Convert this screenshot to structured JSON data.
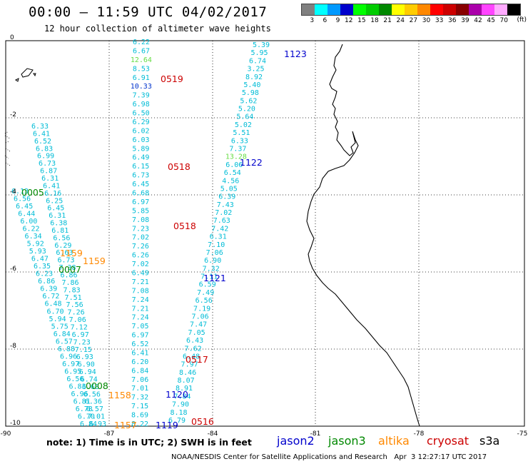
{
  "header": {
    "title": "00:00 — 11:59 UTC 04/02/2017",
    "subtitle": "12 hour collection of altimeter wave heights"
  },
  "legend": {
    "unit": "(ft)",
    "bins": [
      {
        "label": "3",
        "color": "#808080"
      },
      {
        "label": "6",
        "color": "#00ffff"
      },
      {
        "label": "9",
        "color": "#0099ff"
      },
      {
        "label": "12",
        "color": "#0000cc"
      },
      {
        "label": "15",
        "color": "#00ff00"
      },
      {
        "label": "18",
        "color": "#00cc00"
      },
      {
        "label": "21",
        "color": "#008800"
      },
      {
        "label": "24",
        "color": "#ffff00"
      },
      {
        "label": "27",
        "color": "#ffcc00"
      },
      {
        "label": "30",
        "color": "#ff8800"
      },
      {
        "label": "33",
        "color": "#ff0000"
      },
      {
        "label": "36",
        "color": "#cc0000"
      },
      {
        "label": "39",
        "color": "#880000"
      },
      {
        "label": "42",
        "color": "#aa00aa"
      },
      {
        "label": "45",
        "color": "#ff44ff"
      },
      {
        "label": "70",
        "color": "#ffaaff"
      },
      {
        "label": "",
        "color": "#000000"
      }
    ]
  },
  "axes": {
    "y_ticks": [
      "0",
      "-2",
      "-4",
      "-6",
      "-8",
      "-10"
    ],
    "x_ticks": [
      "-90",
      "-87",
      "-84",
      "-81",
      "-78",
      "-75"
    ]
  },
  "colors": {
    "track_value": "#00bcd6",
    "value_high": "#66dd44",
    "value_dark": "#0033cc",
    "jason2": "#0000cc",
    "jason3": "#008800",
    "altika": "#ff8800",
    "cryosat": "#cc0000",
    "s3a": "#000000",
    "gridline": "#000000",
    "coast": "#000000"
  },
  "tracks": [
    {
      "name": "track-east-1",
      "values": [
        "5.39",
        "5.95",
        "6.74",
        "3.25",
        "8.92",
        "5.40",
        "5.98",
        "5.62",
        "5.20",
        "5.64",
        "5.02",
        "5.51",
        "6.33",
        "7.37",
        "13.28",
        "6.06",
        "6.54",
        "4.56",
        "5.05",
        "6.39",
        "7.43",
        "7.02",
        "7.63",
        "7.42",
        "6.31",
        "7.10",
        "7.06",
        "6.90",
        "7.32",
        "7.11",
        "6.59",
        "7.49",
        "6.56",
        "7.19",
        "7.06",
        "7.47",
        "7.05",
        "6.43",
        "7.62",
        "6.48",
        "7.97",
        "8.46",
        "8.07",
        "8.91",
        "7.84",
        "7.90",
        "8.18",
        "6.79"
      ]
    },
    {
      "name": "track-center",
      "values": [
        "6.22",
        "6.67",
        "12.64",
        "8.53",
        "6.91",
        "10.33",
        "7.39",
        "6.98",
        "6.50",
        "6.29",
        "6.02",
        "6.03",
        "5.89",
        "6.49",
        "6.15",
        "6.73",
        "6.45",
        "6.68",
        "6.97",
        "5.85",
        "7.08",
        "7.23",
        "7.02",
        "7.26",
        "6.26",
        "7.02",
        "6.49",
        "7.21",
        "7.08",
        "7.24",
        "7.21",
        "7.24",
        "7.05",
        "6.97",
        "6.52",
        "6.41",
        "6.20",
        "6.84",
        "7.06",
        "7.01",
        "7.32",
        "7.15",
        "8.69",
        "8.22"
      ]
    },
    {
      "name": "track-west-a",
      "values": [
        "6.33",
        "6.41",
        "6.52",
        "6.83",
        "6.99",
        "6.73",
        "6.87",
        "6.31",
        "6.41",
        "6.16",
        "6.25",
        "6.45",
        "6.31",
        "6.38",
        "6.81",
        "6.56",
        "6.29",
        "6.63",
        "6.73",
        "7.38",
        "6.86",
        "7.86",
        "7.83",
        "7.51",
        "7.56",
        "7.26",
        "7.06",
        "7.12",
        "6.97",
        "7.23",
        "7.15",
        "6.93",
        "6.90",
        "6.94",
        "6.74",
        "6.68",
        "6.56",
        "6.36",
        "6.57",
        "7.01",
        "6.93"
      ]
    },
    {
      "name": "track-west-b",
      "values": [
        "6.13",
        "6.56",
        "6.45",
        "6.44",
        "6.00",
        "6.22",
        "6.34",
        "5.92",
        "5.93",
        "6.47",
        "6.35",
        "6.23",
        "6.86",
        "6.39",
        "6.72",
        "6.48",
        "6.70",
        "5.94",
        "5.75",
        "6.84",
        "6.57",
        "6.88",
        "6.96",
        "6.97",
        "6.95",
        "6.56",
        "6.83",
        "6.96",
        "6.81",
        "6.78",
        "6.70",
        "6.84"
      ]
    }
  ],
  "pass_labels": [
    {
      "text": "1123",
      "sat": "jason2"
    },
    {
      "text": "0519",
      "sat": "cryosat"
    },
    {
      "text": "0518",
      "sat": "cryosat"
    },
    {
      "text": "1122",
      "sat": "jason2"
    },
    {
      "text": "0005",
      "sat": "jason3"
    },
    {
      "text": "0518",
      "sat": "cryosat"
    },
    {
      "text": "1159",
      "sat": "altika"
    },
    {
      "text": "1159",
      "sat": "altika"
    },
    {
      "text": "0007",
      "sat": "jason3"
    },
    {
      "text": "1121",
      "sat": "jason2"
    },
    {
      "text": "0517",
      "sat": "cryosat"
    },
    {
      "text": "0008",
      "sat": "jason3"
    },
    {
      "text": "1158",
      "sat": "altika"
    },
    {
      "text": "1120",
      "sat": "jason2"
    },
    {
      "text": "1157",
      "sat": "altika"
    },
    {
      "text": "1119",
      "sat": "jason2"
    },
    {
      "text": "0516",
      "sat": "cryosat"
    }
  ],
  "footer": {
    "note": "note: 1) Time is in UTC; 2) SWH is in feet",
    "satellites": [
      {
        "label": "jason2",
        "color": "#0000cc"
      },
      {
        "label": "jason3",
        "color": "#008800"
      },
      {
        "label": "altika",
        "color": "#ff8800"
      },
      {
        "label": "cryosat",
        "color": "#cc0000"
      },
      {
        "label": "s3a",
        "color": "#000000"
      }
    ],
    "credit": "NOAA/NESDIS Center for Satellite Applications and Research   Apr  3 12:27:17 UTC 2017"
  }
}
